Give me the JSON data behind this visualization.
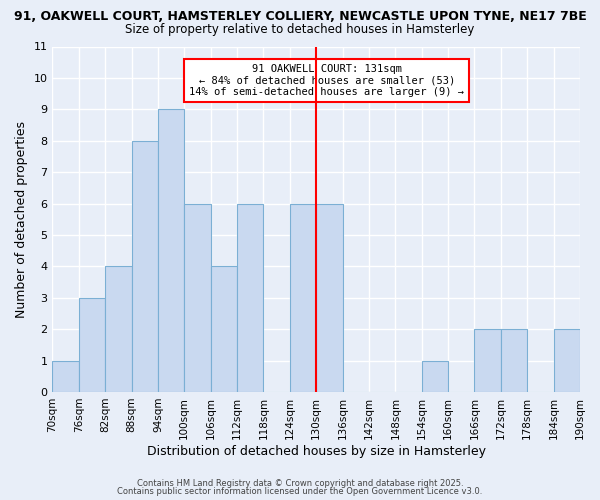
{
  "title_line1": "91, OAKWELL COURT, HAMSTERLEY COLLIERY, NEWCASTLE UPON TYNE, NE17 7BE",
  "title_line2": "Size of property relative to detached houses in Hamsterley",
  "xlabel": "Distribution of detached houses by size in Hamsterley",
  "ylabel": "Number of detached properties",
  "bin_edges": [
    70,
    76,
    82,
    88,
    94,
    100,
    106,
    112,
    118,
    124,
    130,
    136,
    142,
    148,
    154,
    160,
    166,
    172,
    178,
    184,
    190
  ],
  "bar_heights": [
    1,
    3,
    4,
    8,
    9,
    6,
    4,
    6,
    0,
    6,
    6,
    0,
    0,
    0,
    1,
    0,
    2,
    2,
    0,
    2
  ],
  "bar_color": "#c9d9f0",
  "bar_edge_color": "#7bafd4",
  "vline_x": 130,
  "vline_color": "red",
  "ylim": [
    0,
    11
  ],
  "yticks": [
    0,
    1,
    2,
    3,
    4,
    5,
    6,
    7,
    8,
    9,
    10,
    11
  ],
  "annotation_title": "91 OAKWELL COURT: 131sqm",
  "annotation_line1": "← 84% of detached houses are smaller (53)",
  "annotation_line2": "14% of semi-detached houses are larger (9) →",
  "footer_line1": "Contains HM Land Registry data © Crown copyright and database right 2025.",
  "footer_line2": "Contains public sector information licensed under the Open Government Licence v3.0.",
  "background_color": "#e8eef8",
  "grid_color": "#ffffff",
  "tick_label_fontsize": 7.5,
  "axis_label_fontsize": 9,
  "title_fontsize1": 9,
  "title_fontsize2": 8.5
}
